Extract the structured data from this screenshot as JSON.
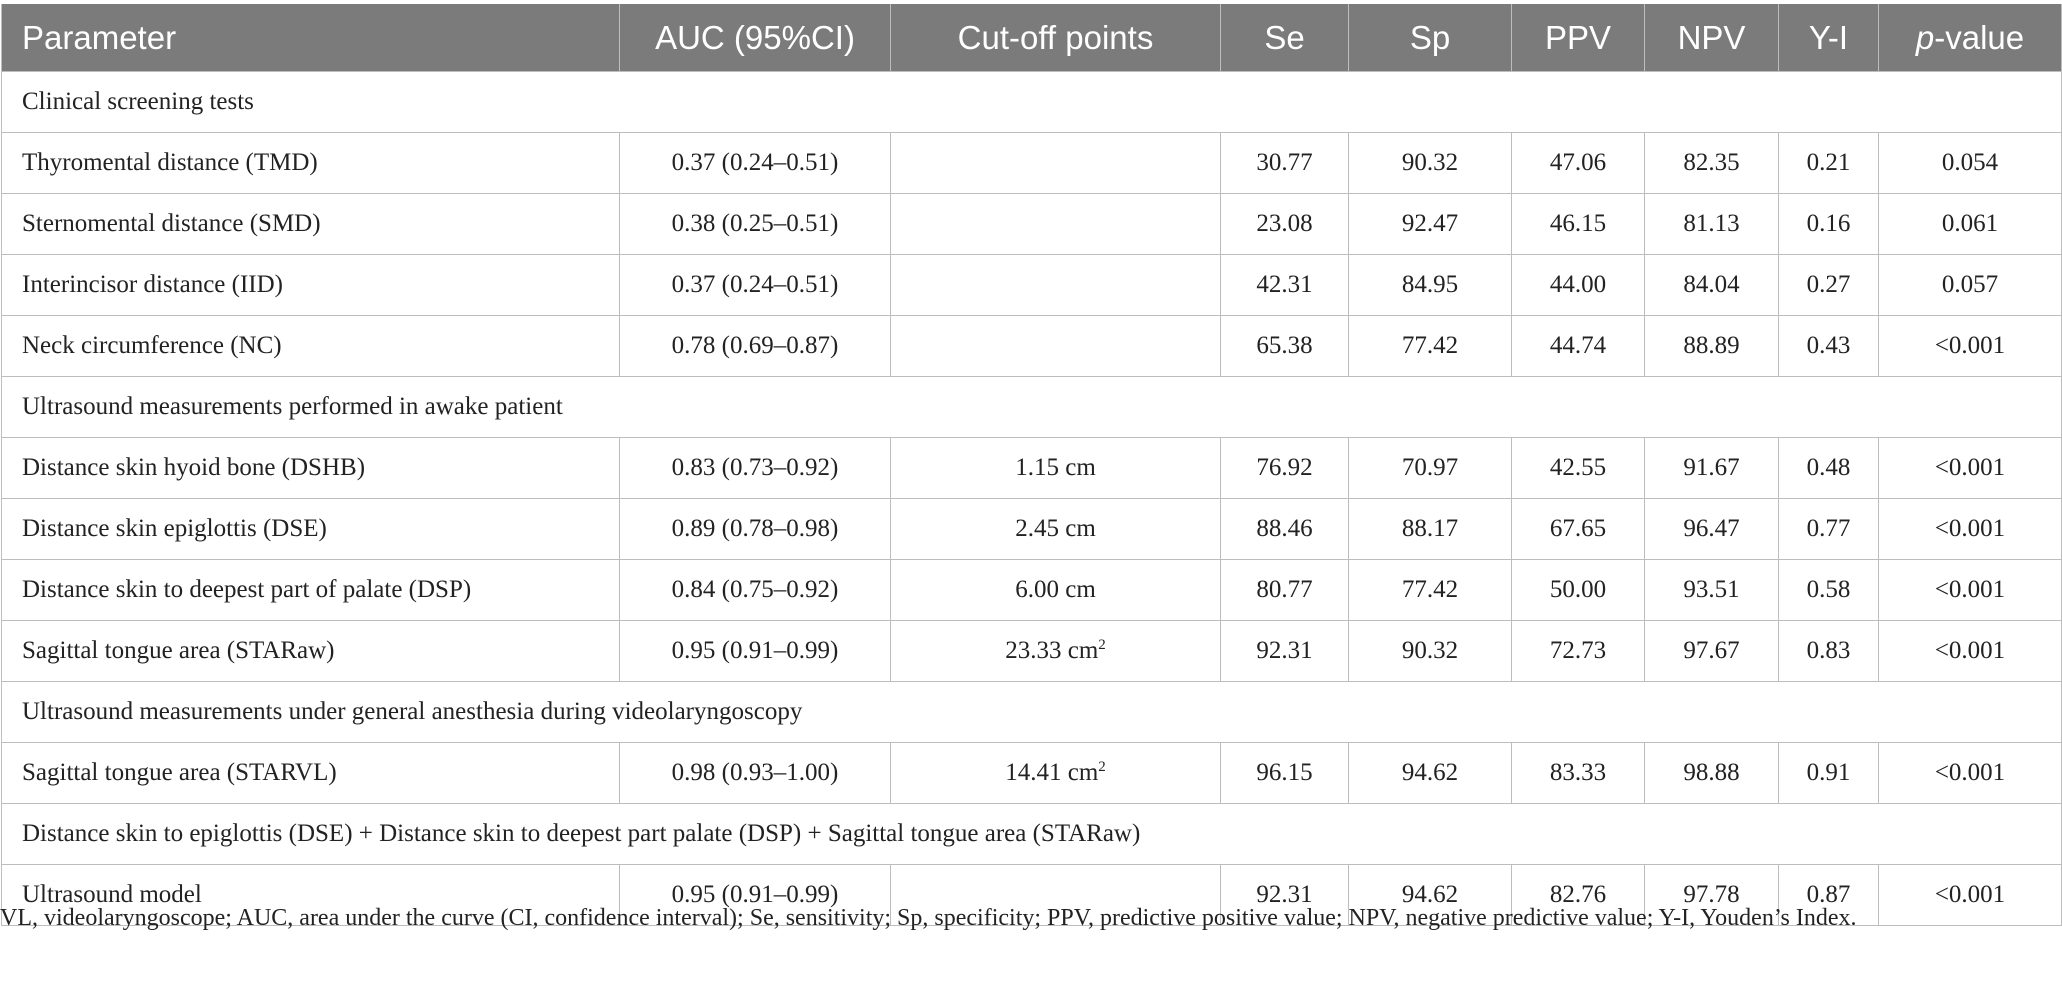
{
  "headers": {
    "parameter": "Parameter",
    "auc": "AUC (95%CI)",
    "cutoff": "Cut-off points",
    "se": "Se",
    "sp": "Sp",
    "ppv": "PPV",
    "npv": "NPV",
    "yi": "Y-I",
    "p_italic": "p",
    "p_rest": "-value"
  },
  "sections": [
    {
      "title": "Clinical screening tests",
      "rows": [
        {
          "param": "Thyromental distance (TMD)",
          "auc": "0.37 (0.24–0.51)",
          "cutoff": "",
          "cutoff_sup": "",
          "se": "30.77",
          "sp": "90.32",
          "ppv": "47.06",
          "npv": "82.35",
          "yi": "0.21",
          "p": "0.054"
        },
        {
          "param": "Sternomental distance (SMD)",
          "auc": "0.38 (0.25–0.51)",
          "cutoff": "",
          "cutoff_sup": "",
          "se": "23.08",
          "sp": "92.47",
          "ppv": "46.15",
          "npv": "81.13",
          "yi": "0.16",
          "p": "0.061"
        },
        {
          "param": "Interincisor distance (IID)",
          "auc": "0.37 (0.24–0.51)",
          "cutoff": "",
          "cutoff_sup": "",
          "se": "42.31",
          "sp": "84.95",
          "ppv": "44.00",
          "npv": "84.04",
          "yi": "0.27",
          "p": "0.057"
        },
        {
          "param": "Neck circumference (NC)",
          "auc": "0.78 (0.69–0.87)",
          "cutoff": "",
          "cutoff_sup": "",
          "se": "65.38",
          "sp": "77.42",
          "ppv": "44.74",
          "npv": "88.89",
          "yi": "0.43",
          "p": "<0.001"
        }
      ]
    },
    {
      "title": "Ultrasound measurements performed in awake patient",
      "rows": [
        {
          "param": "Distance skin hyoid bone (DSHB)",
          "auc": "0.83 (0.73–0.92)",
          "cutoff": "1.15 cm",
          "cutoff_sup": "",
          "se": "76.92",
          "sp": "70.97",
          "ppv": "42.55",
          "npv": "91.67",
          "yi": "0.48",
          "p": "<0.001"
        },
        {
          "param": "Distance skin epiglottis (DSE)",
          "auc": "0.89 (0.78–0.98)",
          "cutoff": "2.45 cm",
          "cutoff_sup": "",
          "se": "88.46",
          "sp": "88.17",
          "ppv": "67.65",
          "npv": "96.47",
          "yi": "0.77",
          "p": "<0.001"
        },
        {
          "param": "Distance skin to deepest part of palate (DSP)",
          "auc": "0.84 (0.75–0.92)",
          "cutoff": "6.00 cm",
          "cutoff_sup": "",
          "se": "80.77",
          "sp": "77.42",
          "ppv": "50.00",
          "npv": "93.51",
          "yi": "0.58",
          "p": "<0.001"
        },
        {
          "param": "Sagittal tongue area (STARaw)",
          "auc": "0.95 (0.91–0.99)",
          "cutoff": "23.33 cm",
          "cutoff_sup": "2",
          "se": "92.31",
          "sp": "90.32",
          "ppv": "72.73",
          "npv": "97.67",
          "yi": "0.83",
          "p": "<0.001"
        }
      ]
    },
    {
      "title": "Ultrasound measurements under general anesthesia during videolaryngoscopy",
      "rows": [
        {
          "param": "Sagittal tongue area (STARVL)",
          "auc": "0.98 (0.93–1.00)",
          "cutoff": "14.41 cm",
          "cutoff_sup": "2",
          "se": "96.15",
          "sp": "94.62",
          "ppv": "83.33",
          "npv": "98.88",
          "yi": "0.91",
          "p": "<0.001"
        }
      ]
    },
    {
      "title": "Distance skin to epiglottis (DSE) + Distance skin to deepest part palate (DSP) + Sagittal tongue area (STARaw)",
      "rows": [
        {
          "param": "Ultrasound model",
          "auc": "0.95 (0.91–0.99)",
          "cutoff": "",
          "cutoff_sup": "",
          "se": "92.31",
          "sp": "94.62",
          "ppv": "82.76",
          "npv": "97.78",
          "yi": "0.87",
          "p": "<0.001"
        }
      ]
    }
  ],
  "footnote": "VL, videolaryngoscope; AUC, area under the curve (CI, confidence interval); Se, sensitivity; Sp, specificity; PPV, predictive positive value; NPV, negative predictive value; Y-I, Youden’s Index.",
  "colors": {
    "header_bg": "#7b7b7b",
    "header_text": "#ffffff",
    "grid": "#bdbdbd",
    "text": "#222222"
  }
}
